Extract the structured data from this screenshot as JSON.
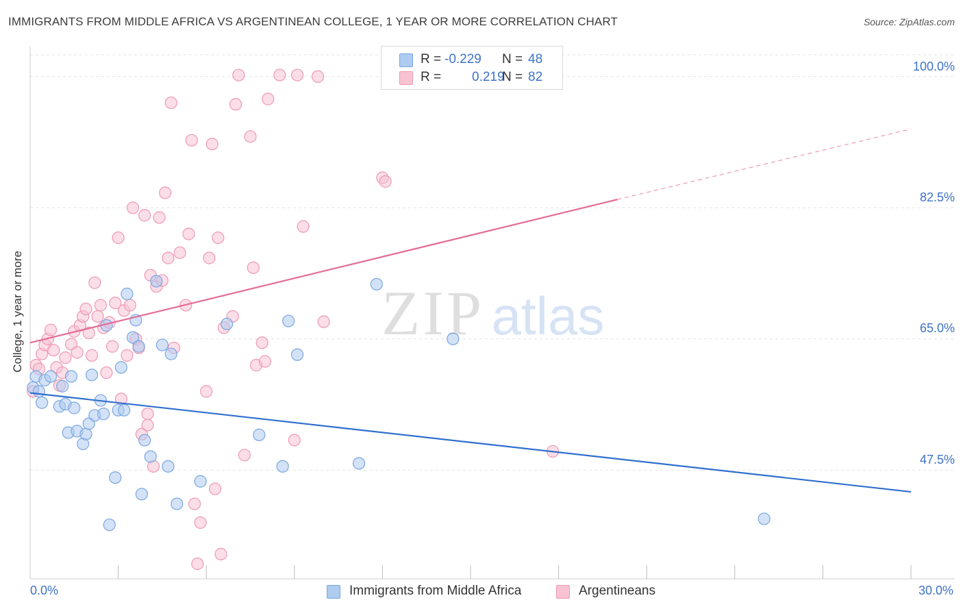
{
  "title": "IMMIGRANTS FROM MIDDLE AFRICA VS ARGENTINEAN COLLEGE, 1 YEAR OR MORE CORRELATION CHART",
  "source": "Source: ZipAtlas.com",
  "watermark": {
    "zip": "ZIP",
    "atlas": "atlas"
  },
  "legend_top": {
    "r_label": "R =",
    "n_label": "N =",
    "rows": [
      {
        "r": "-0.229",
        "n": "48"
      },
      {
        "r": "0.219",
        "n": "82"
      }
    ]
  },
  "colors": {
    "blue_fill": "#aecbf0",
    "blue_stroke": "#7aa6e0",
    "blue_line": "#2f6fcf",
    "pink_fill": "#f7c3d3",
    "pink_stroke": "#ee98b4",
    "pink_line": "#e56b97",
    "tick_text": "#3d72c8",
    "grid": "#e2e2e2"
  },
  "chart_data": {
    "type": "scatter",
    "title": "IMMIGRANTS FROM MIDDLE AFRICA VS ARGENTINEAN COLLEGE, 1 YEAR OR MORE CORRELATION CHART",
    "xlabel": "",
    "ylabel": "College, 1 year or more",
    "xlim": [
      0,
      30
    ],
    "ylim": [
      33,
      104
    ],
    "x_tick_labels": [
      "0.0%",
      "30.0%"
    ],
    "y_ticks": [
      47.5,
      65.0,
      82.5,
      100.0
    ],
    "y_tick_labels": [
      "47.5%",
      "65.0%",
      "82.5%",
      "100.0%"
    ],
    "grid": true,
    "legend_position": "bottom",
    "series": [
      {
        "name": "Immigrants from Middle Africa",
        "color": "blue",
        "trend": {
          "x": [
            0.0,
            30.0
          ],
          "y": [
            57.8,
            44.6
          ]
        },
        "points": [
          [
            0.1,
            58.5
          ],
          [
            0.2,
            60.0
          ],
          [
            0.3,
            58.0
          ],
          [
            0.4,
            56.5
          ],
          [
            0.5,
            59.5
          ],
          [
            0.7,
            60.0
          ],
          [
            1.0,
            56.0
          ],
          [
            1.1,
            58.7
          ],
          [
            1.2,
            56.3
          ],
          [
            1.3,
            52.5
          ],
          [
            1.4,
            60.0
          ],
          [
            1.5,
            55.8
          ],
          [
            1.6,
            52.7
          ],
          [
            1.8,
            51.0
          ],
          [
            1.9,
            52.3
          ],
          [
            2.0,
            53.7
          ],
          [
            2.1,
            60.2
          ],
          [
            2.2,
            54.8
          ],
          [
            2.4,
            56.8
          ],
          [
            2.5,
            55.0
          ],
          [
            2.6,
            66.8
          ],
          [
            2.7,
            40.2
          ],
          [
            2.9,
            46.5
          ],
          [
            3.0,
            55.5
          ],
          [
            3.1,
            61.2
          ],
          [
            3.2,
            55.5
          ],
          [
            3.3,
            71.0
          ],
          [
            3.5,
            65.2
          ],
          [
            3.6,
            67.5
          ],
          [
            3.7,
            64.0
          ],
          [
            3.8,
            44.3
          ],
          [
            3.9,
            51.5
          ],
          [
            4.1,
            49.3
          ],
          [
            4.3,
            72.7
          ],
          [
            4.5,
            64.2
          ],
          [
            4.7,
            48.0
          ],
          [
            4.8,
            63.0
          ],
          [
            5.0,
            43.0
          ],
          [
            5.8,
            46.0
          ],
          [
            6.7,
            67.0
          ],
          [
            7.8,
            52.2
          ],
          [
            8.6,
            48.0
          ],
          [
            8.8,
            67.4
          ],
          [
            9.1,
            62.9
          ],
          [
            11.2,
            48.4
          ],
          [
            11.8,
            72.3
          ],
          [
            14.4,
            65.0
          ],
          [
            25.0,
            41.0
          ]
        ]
      },
      {
        "name": "Argentineans",
        "color": "pink",
        "trend": {
          "x": [
            0.0,
            20.0
          ],
          "y": [
            64.5,
            83.6
          ]
        },
        "trend_extension": {
          "x": [
            20.0,
            30.0
          ],
          "y": [
            83.6,
            93.0
          ]
        },
        "points": [
          [
            0.1,
            58.0
          ],
          [
            0.2,
            61.5
          ],
          [
            0.3,
            61.0
          ],
          [
            0.4,
            63.0
          ],
          [
            0.5,
            64.2
          ],
          [
            0.6,
            65.0
          ],
          [
            0.7,
            66.2
          ],
          [
            0.8,
            63.5
          ],
          [
            0.9,
            61.2
          ],
          [
            1.0,
            58.8
          ],
          [
            1.1,
            60.5
          ],
          [
            1.2,
            62.5
          ],
          [
            1.4,
            64.3
          ],
          [
            1.5,
            66.0
          ],
          [
            1.6,
            63.2
          ],
          [
            1.7,
            66.8
          ],
          [
            1.8,
            68.0
          ],
          [
            1.9,
            69.0
          ],
          [
            2.0,
            65.8
          ],
          [
            2.1,
            62.8
          ],
          [
            2.2,
            72.5
          ],
          [
            2.3,
            68.0
          ],
          [
            2.4,
            69.5
          ],
          [
            2.5,
            66.5
          ],
          [
            2.6,
            60.5
          ],
          [
            2.7,
            67.2
          ],
          [
            2.8,
            64.0
          ],
          [
            2.9,
            69.8
          ],
          [
            3.0,
            78.5
          ],
          [
            3.1,
            57.0
          ],
          [
            3.2,
            68.8
          ],
          [
            3.3,
            62.8
          ],
          [
            3.4,
            69.5
          ],
          [
            3.5,
            82.5
          ],
          [
            3.6,
            65.0
          ],
          [
            3.7,
            63.8
          ],
          [
            3.8,
            52.3
          ],
          [
            3.9,
            81.5
          ],
          [
            4.0,
            55.0
          ],
          [
            4.1,
            73.5
          ],
          [
            4.2,
            48.0
          ],
          [
            4.3,
            72.0
          ],
          [
            4.4,
            81.2
          ],
          [
            4.5,
            72.8
          ],
          [
            4.6,
            84.5
          ],
          [
            4.7,
            75.8
          ],
          [
            4.8,
            96.5
          ],
          [
            4.9,
            63.8
          ],
          [
            5.1,
            76.5
          ],
          [
            5.3,
            69.5
          ],
          [
            5.4,
            79.0
          ],
          [
            5.5,
            91.5
          ],
          [
            5.6,
            43.0
          ],
          [
            5.7,
            35.0
          ],
          [
            5.8,
            40.5
          ],
          [
            6.0,
            58.0
          ],
          [
            6.1,
            75.8
          ],
          [
            6.2,
            91.0
          ],
          [
            6.3,
            45.0
          ],
          [
            6.4,
            78.5
          ],
          [
            6.5,
            36.3
          ],
          [
            6.6,
            66.5
          ],
          [
            7.0,
            96.3
          ],
          [
            7.1,
            100.2
          ],
          [
            7.3,
            49.5
          ],
          [
            7.5,
            92.0
          ],
          [
            7.6,
            74.5
          ],
          [
            7.7,
            61.5
          ],
          [
            7.9,
            64.5
          ],
          [
            8.0,
            62.0
          ],
          [
            8.1,
            97.0
          ],
          [
            8.5,
            100.2
          ],
          [
            9.0,
            51.5
          ],
          [
            9.1,
            100.2
          ],
          [
            9.3,
            80.0
          ],
          [
            9.8,
            100.0
          ],
          [
            10.0,
            67.3
          ],
          [
            12.0,
            86.5
          ],
          [
            12.1,
            86.0
          ],
          [
            17.8,
            50.0
          ],
          [
            6.9,
            68.0
          ],
          [
            4.0,
            53.5
          ]
        ]
      }
    ]
  },
  "legend_bottom": [
    {
      "label": "Immigrants from Middle Africa"
    },
    {
      "label": "Argentineans"
    }
  ]
}
